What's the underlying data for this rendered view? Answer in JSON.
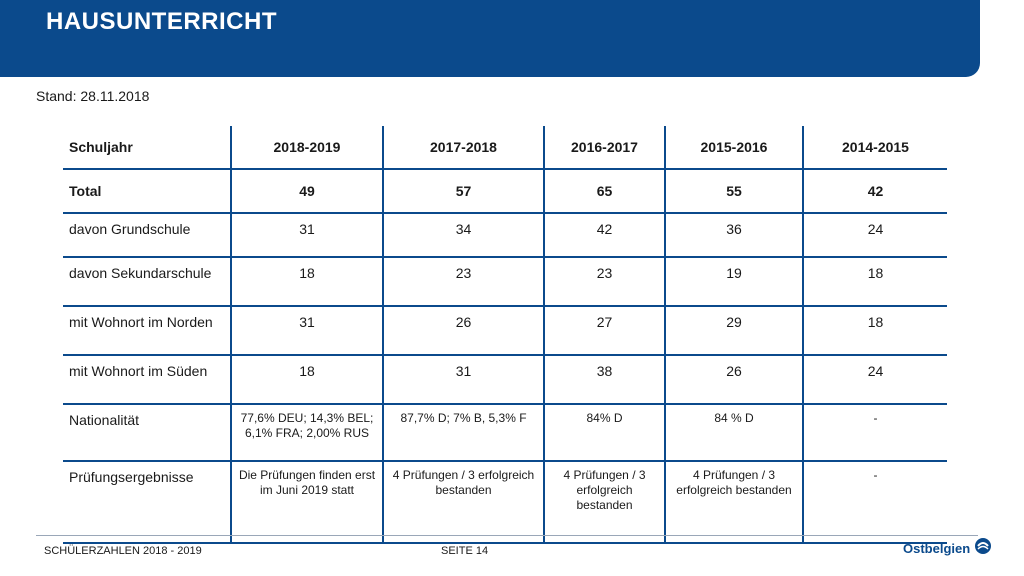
{
  "header": {
    "title": "HAUSUNTERRICHT",
    "color": "#0b4a8c"
  },
  "stand": "Stand: 28.11.2018",
  "table": {
    "columns": [
      "Schuljahr",
      "2018-2019",
      "2017-2018",
      "2016-2017",
      "2015-2016",
      "2014-2015"
    ],
    "rows": [
      {
        "label": "Total",
        "values": [
          "49",
          "57",
          "65",
          "55",
          "42"
        ]
      },
      {
        "label": "davon Grundschule",
        "values": [
          "31",
          "34",
          "42",
          "36",
          "24"
        ]
      },
      {
        "label": "davon Sekundarschule",
        "values": [
          "18",
          "23",
          "23",
          "19",
          "18"
        ]
      },
      {
        "label": "mit Wohnort im Norden",
        "values": [
          "31",
          "26",
          "27",
          "29",
          "18"
        ]
      },
      {
        "label": "mit Wohnort im Süden",
        "values": [
          "18",
          "31",
          "38",
          "26",
          "24"
        ]
      },
      {
        "label": "Nationalität",
        "values": [
          "77,6% DEU; 14,3% BEL; 6,1% FRA; 2,00% RUS",
          "87,7% D; 7% B, 5,3% F",
          "84% D",
          "84 % D",
          "-"
        ]
      },
      {
        "label": "Prüfungsergebnisse",
        "values": [
          "Die Prüfungen finden erst im Juni 2019 statt",
          "4 Prüfungen / 3 erfolgreich bestanden",
          "4 Prüfungen / 3 erfolgreich bestanden",
          "4 Prüfungen / 3 erfolgreich bestanden",
          "-"
        ]
      }
    ]
  },
  "footer": {
    "left": "SCHÜLERZAHLEN 2018 - 2019",
    "page": "SEITE 14",
    "logo": "Ostbelgien",
    "logo_icon": "ostbelgien-logo-icon"
  }
}
